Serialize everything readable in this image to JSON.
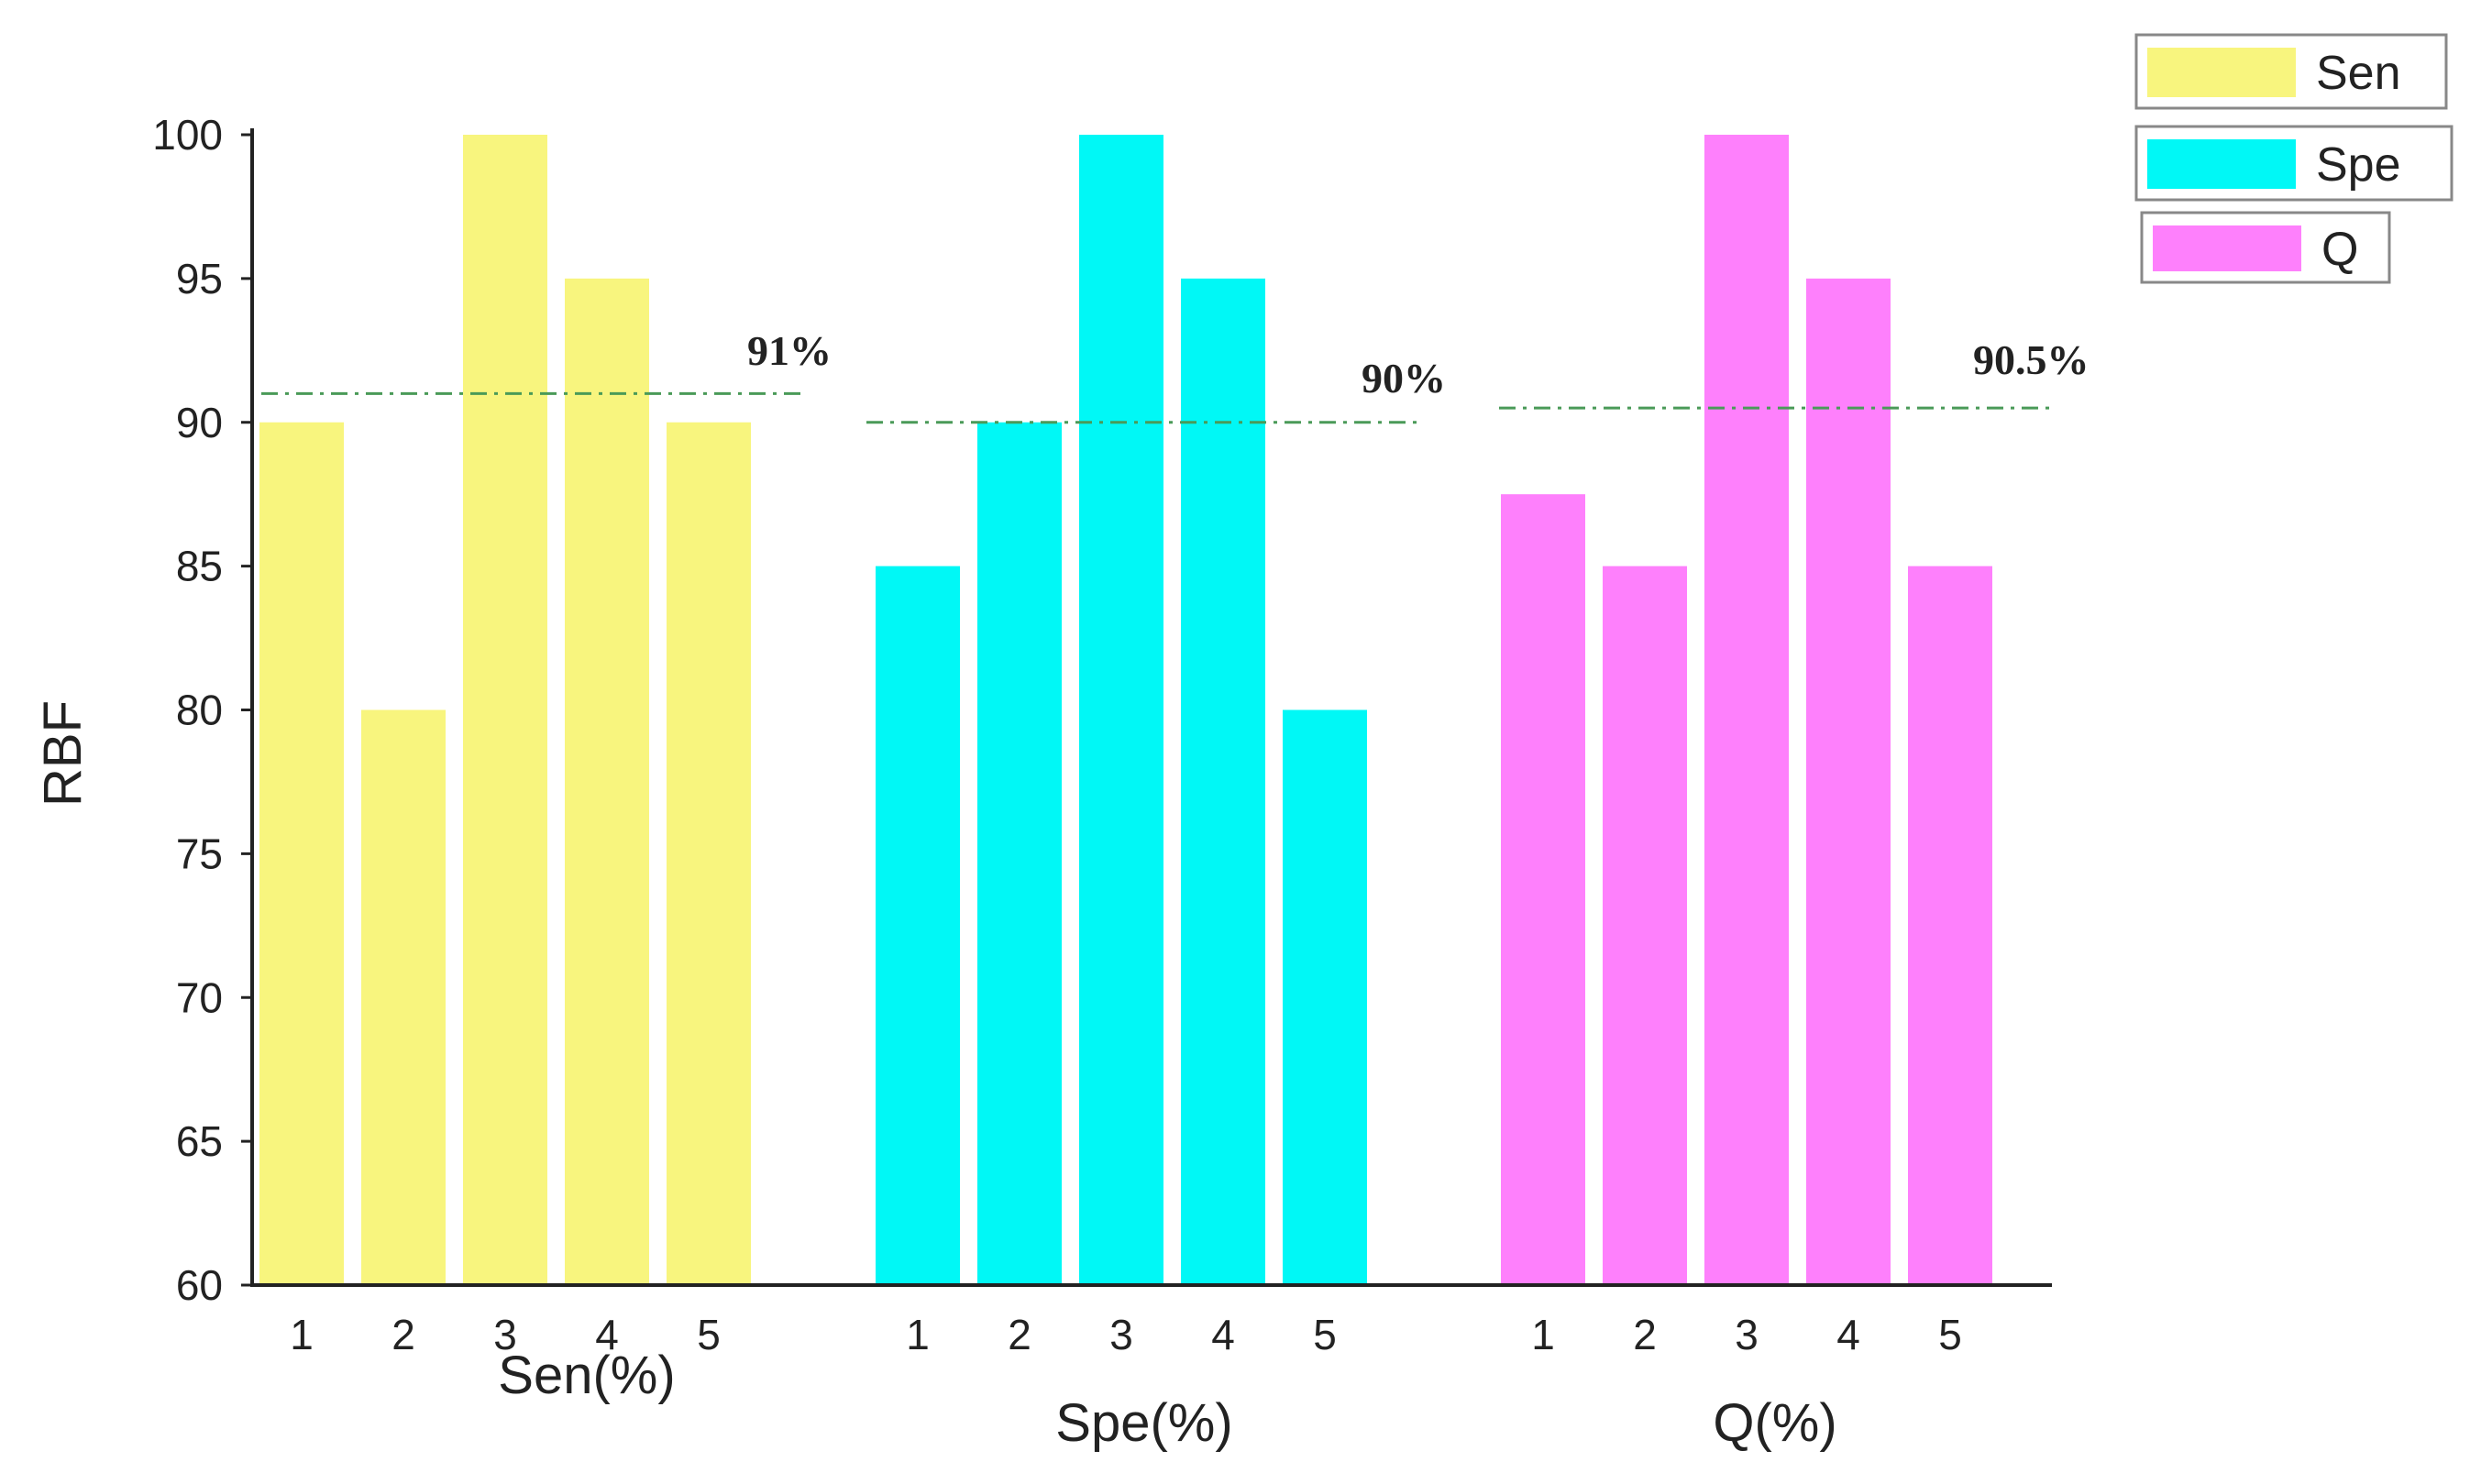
{
  "chart_data": {
    "type": "bar",
    "ylabel": "RBF",
    "ylim": [
      60,
      100
    ],
    "yticks": [
      "60",
      "65",
      "70",
      "75",
      "80",
      "85",
      "90",
      "95",
      "100"
    ],
    "grid": false,
    "legend_position": "top-right",
    "groups": [
      {
        "series": "Sen",
        "xlabel": "Sen(%)",
        "categories": [
          "1",
          "2",
          "3",
          "4",
          "5"
        ],
        "values": [
          90,
          80,
          100,
          95,
          90
        ],
        "mean": 91,
        "mean_label": "91%",
        "color": "#f8f57e"
      },
      {
        "series": "Spe",
        "xlabel": "Spe(%)",
        "categories": [
          "1",
          "2",
          "3",
          "4",
          "5"
        ],
        "values": [
          85,
          90,
          100,
          95,
          80
        ],
        "mean": 90,
        "mean_label": "90%",
        "color": "#00f8f6"
      },
      {
        "series": "Q",
        "xlabel": "Q(%)",
        "categories": [
          "1",
          "2",
          "3",
          "4",
          "5"
        ],
        "values": [
          87.5,
          85,
          100,
          95,
          85
        ],
        "mean": 90.5,
        "mean_label": "90.5%",
        "color": "#fe80fc"
      }
    ],
    "legend": [
      {
        "label": "Sen",
        "color": "#f8f57e"
      },
      {
        "label": "Spe",
        "color": "#00f8f6"
      },
      {
        "label": "Q",
        "color": "#fe80fc"
      }
    ],
    "mean_line_color": "#4a9a58"
  }
}
